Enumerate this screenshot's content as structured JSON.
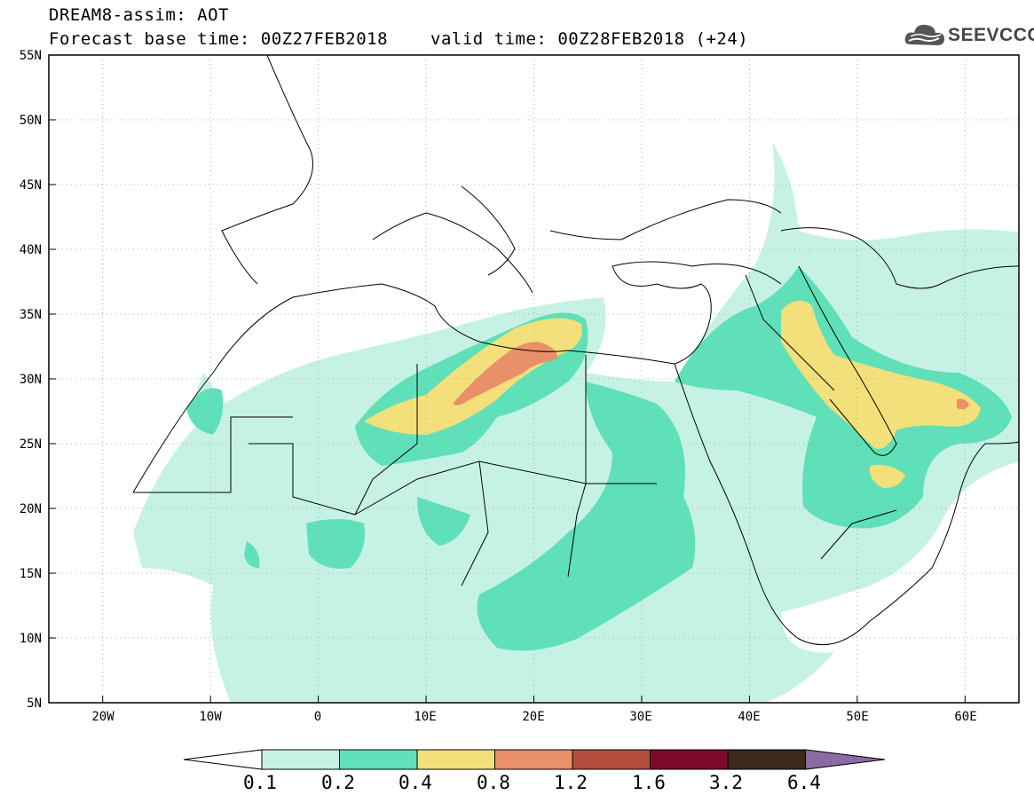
{
  "header": {
    "line1": "DREAM8-assim: AOT",
    "base_time": "Forecast base time: 00Z27FEB2018",
    "valid_time": "valid time: 00Z28FEB2018 (+24)"
  },
  "logo": {
    "text": "SEEVCCC",
    "icon": "cloud-logo-icon"
  },
  "map": {
    "lat_labels": [
      "55N",
      "50N",
      "45N",
      "40N",
      "35N",
      "30N",
      "25N",
      "20N",
      "15N",
      "10N",
      "5N"
    ],
    "lon_labels": [
      "20W",
      "10W",
      "0",
      "10E",
      "20E",
      "30E",
      "40E",
      "50E",
      "60E"
    ],
    "lat_range": [
      5,
      55
    ],
    "lon_range": [
      -25,
      65
    ]
  },
  "colorbar": {
    "levels": [
      "0.1",
      "0.2",
      "0.4",
      "0.8",
      "1.2",
      "1.6",
      "3.2",
      "6.4"
    ],
    "colors": [
      "#ffffff",
      "#c6f2e6",
      "#5fe0b8",
      "#f4e07a",
      "#ea9068",
      "#b34e3e",
      "#7d0a2a",
      "#3c2a1a",
      "#8c6aa3"
    ]
  }
}
